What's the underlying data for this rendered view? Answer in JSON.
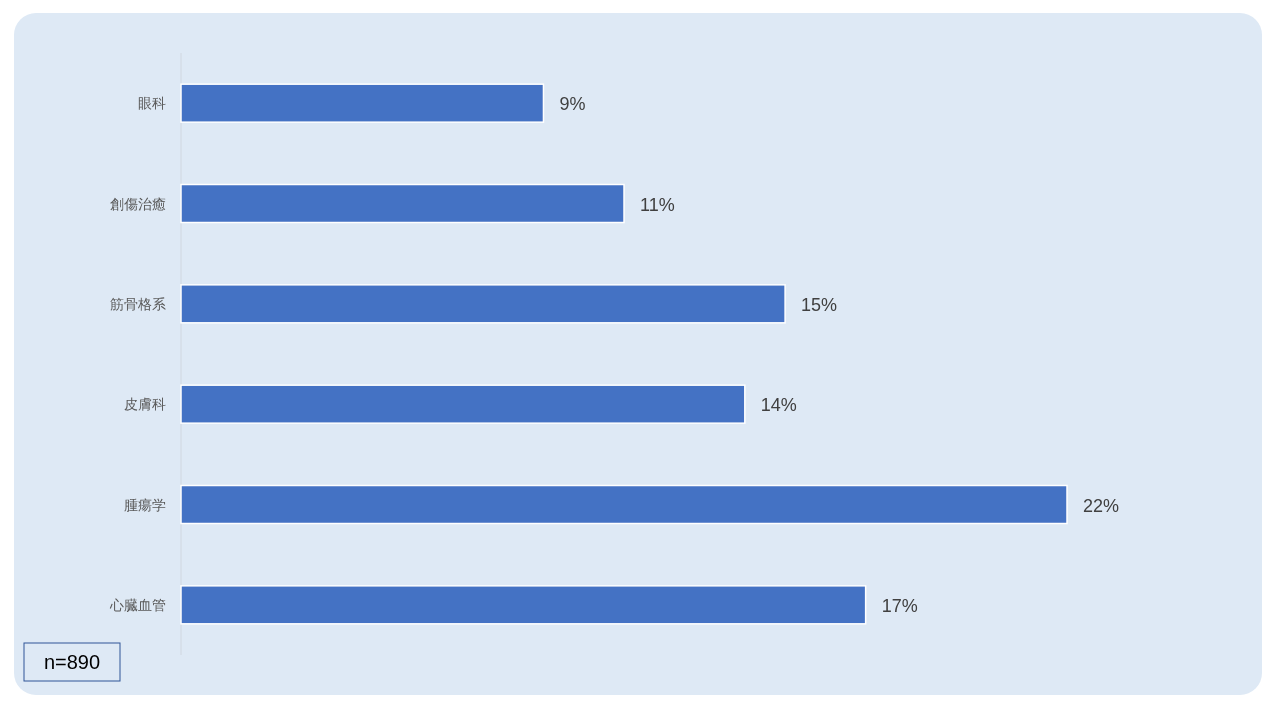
{
  "chart_data": {
    "type": "bar",
    "orientation": "horizontal",
    "categories": [
      "眼科",
      "創傷治癒",
      "筋骨格系",
      "皮膚科",
      "腫瘍学",
      "心臓血管"
    ],
    "values": [
      9,
      11,
      15,
      14,
      22,
      17
    ],
    "value_labels": [
      "9%",
      "11%",
      "15%",
      "14%",
      "22%",
      "17%"
    ],
    "color": "#4472c4",
    "annotations": [
      "n=890"
    ]
  }
}
